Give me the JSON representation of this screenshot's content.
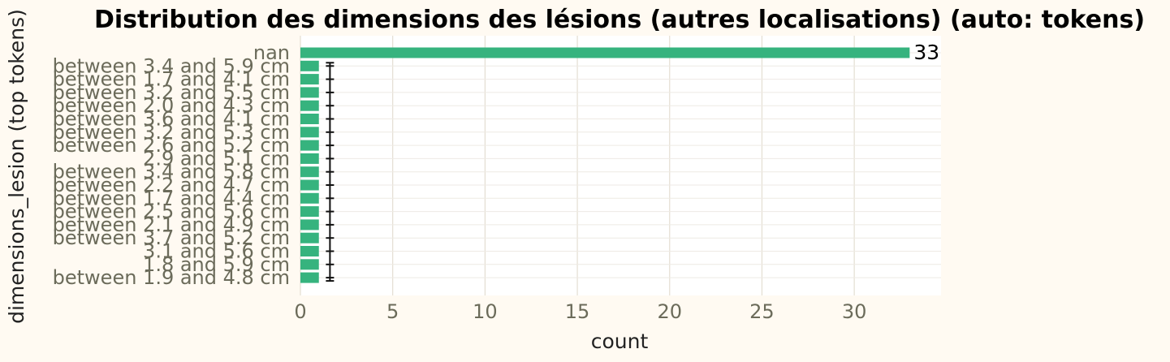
{
  "chart_data": {
    "type": "bar",
    "orientation": "horizontal",
    "title": "Distribution des dimensions des lésions (autres localisations) (auto: tokens)",
    "xlabel": "count",
    "ylabel": "dimensions_lesion (top tokens)",
    "xlim": [
      0,
      34.7
    ],
    "xticks": [
      0,
      5,
      10,
      15,
      20,
      25,
      30
    ],
    "grid": true,
    "legend": "none",
    "bar_color": "#36b37e",
    "background_color": "#fffaf2",
    "plot_background_color": "#ffffff",
    "categories": [
      "nan",
      "between 3.4 and 5.9 cm",
      "between 1.7 and 4.1 cm",
      "between 3.2 and 5.5 cm",
      "between 2.0 and 4.3 cm",
      "between 3.6 and 4.1 cm",
      "between 3.2 and 5.3 cm",
      "between 2.6 and 5.2 cm",
      "2.9 and 5.1 cm",
      "between 3.4 and 5.8 cm",
      "between 2.2 and 4.7 cm",
      "between 1.7 and 4.4 cm",
      "between 2.5 and 5.6 cm",
      "between 2.1 and 4.9 cm",
      "between 3.7 and 5.2 cm",
      "3.1 and 5.6 cm",
      "1.8 and 5.9 cm",
      "between 1.9 and 4.8 cm"
    ],
    "values": [
      33,
      1,
      1,
      1,
      1,
      1,
      1,
      1,
      1,
      1,
      1,
      1,
      1,
      1,
      1,
      1,
      1,
      1
    ],
    "data_labels": [
      "33"
    ],
    "error_bars": [
      {
        "category": "between 3.4 and 5.9 cm",
        "value": 1.6
      },
      {
        "category": "between 1.9 and 4.8 cm",
        "value": 1.6
      }
    ]
  }
}
